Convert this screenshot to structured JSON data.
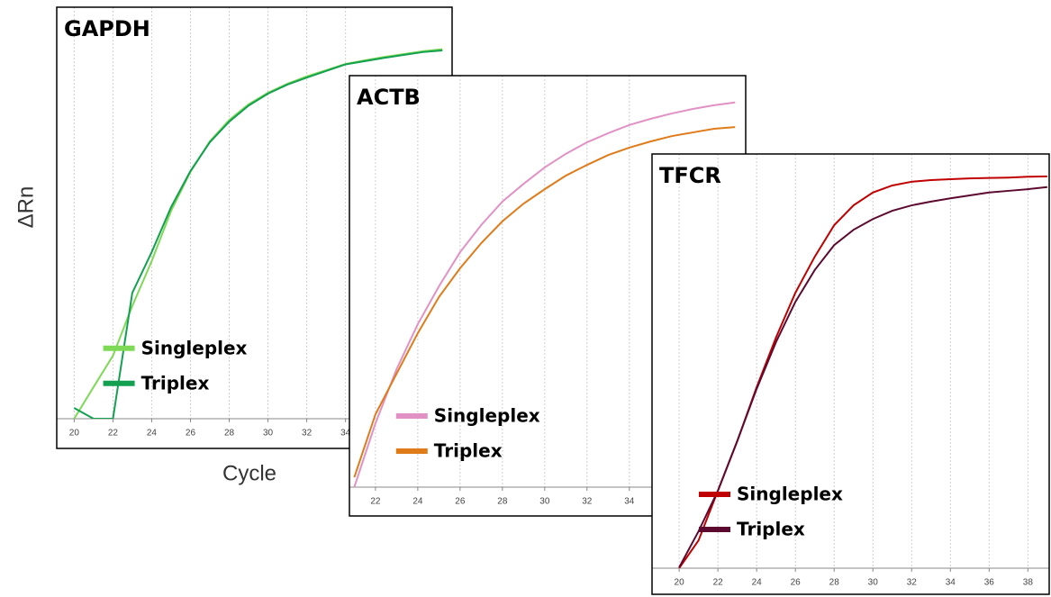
{
  "chart_data": [
    {
      "type": "line",
      "title": "GAPDH",
      "xlabel": "Cycle",
      "ylabel": "ΔRn",
      "x": [
        20,
        21,
        22,
        23,
        24,
        25,
        26,
        27,
        28,
        29,
        30,
        31,
        32,
        33,
        34,
        35,
        36,
        37,
        38,
        39
      ],
      "xlim": [
        19.1,
        39.5
      ],
      "ylim": [
        0,
        100
      ],
      "xticks": [
        20,
        22,
        24,
        26,
        28,
        30,
        32,
        34
      ],
      "grid": true,
      "legend": "lower center",
      "series": [
        {
          "name": "Singleplex",
          "color": "#7ed957",
          "values": [
            0,
            7.7,
            15.3,
            27.4,
            38.3,
            50.5,
            60.0,
            67.4,
            72.6,
            76.4,
            79.2,
            81.4,
            83.2,
            84.7,
            86.2,
            87.1,
            87.9,
            88.6,
            89.3,
            89.8
          ]
        },
        {
          "name": "Triplex",
          "color": "#13a050",
          "values": [
            2.6,
            0,
            0,
            30.6,
            40.5,
            51.4,
            60.2,
            67.2,
            72.2,
            76.1,
            79.0,
            81.2,
            82.9,
            84.5,
            86.1,
            86.9,
            87.7,
            88.4,
            89.1,
            89.5
          ]
        }
      ]
    },
    {
      "type": "line",
      "title": "ACTB",
      "x": [
        21,
        22,
        23,
        24,
        25,
        26,
        27,
        28,
        29,
        30,
        31,
        32,
        33,
        34,
        35,
        36,
        37,
        38,
        39
      ],
      "xlim": [
        20.77,
        39.5
      ],
      "ylim": [
        0,
        100
      ],
      "xticks": [
        22,
        24,
        26,
        28,
        30,
        32,
        34
      ],
      "grid": true,
      "legend": "lower center",
      "series": [
        {
          "name": "Singleplex",
          "color": "#e291c4",
          "values": [
            0,
            15.5,
            28.7,
            39.6,
            48.8,
            57.1,
            63.7,
            69.4,
            73.7,
            77.7,
            81.0,
            83.8,
            86.0,
            88.0,
            89.5,
            90.8,
            91.9,
            92.8,
            93.5
          ]
        },
        {
          "name": "Triplex",
          "color": "#e07b1a",
          "values": [
            2.4,
            17.7,
            27.6,
            37.4,
            46.2,
            53.2,
            59.3,
            64.6,
            68.9,
            72.4,
            75.7,
            78.3,
            80.7,
            82.5,
            84.0,
            85.3,
            86.2,
            87.1,
            87.5
          ]
        }
      ]
    },
    {
      "type": "line",
      "title": "TFCR",
      "x": [
        20,
        21,
        22,
        23,
        24,
        25,
        26,
        27,
        28,
        29,
        30,
        31,
        32,
        33,
        34,
        35,
        36,
        37,
        38,
        39
      ],
      "xlim": [
        18.6,
        39.1
      ],
      "ylim": [
        0,
        100
      ],
      "xticks": [
        20,
        22,
        24,
        26,
        28,
        30,
        32,
        34,
        36,
        38
      ],
      "grid": true,
      "legend": "lower center",
      "series": [
        {
          "name": "Singleplex",
          "color": "#c00000",
          "values": [
            0,
            6.7,
            18.7,
            30.7,
            43.7,
            55.7,
            66.5,
            75.2,
            82.8,
            87.6,
            90.7,
            92.4,
            93.3,
            93.7,
            93.9,
            94.1,
            94.2,
            94.3,
            94.5,
            94.6
          ]
        },
        {
          "name": "Triplex",
          "color": "#5c0a30",
          "values": [
            0.2,
            8.9,
            18.7,
            30.7,
            43.3,
            54.6,
            64.3,
            72.0,
            78.0,
            81.7,
            84.3,
            86.3,
            87.6,
            88.5,
            89.3,
            90.0,
            90.7,
            91.1,
            91.5,
            92.0
          ]
        }
      ]
    }
  ]
}
